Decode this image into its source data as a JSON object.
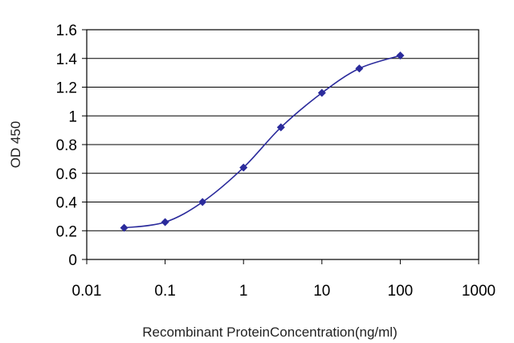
{
  "chart_data": {
    "type": "line",
    "title": "",
    "xlabel": "Recombinant ProteinConcentration(ng/ml)",
    "ylabel": "OD 450",
    "x_scale": "log",
    "xlim": [
      0.01,
      1000
    ],
    "ylim": [
      0,
      1.6
    ],
    "x_ticks": [
      0.01,
      0.1,
      1,
      10,
      100,
      1000
    ],
    "x_tick_labels": [
      "0.01",
      "0.1",
      "1",
      "10",
      "100",
      "1000"
    ],
    "y_ticks": [
      0,
      0.2,
      0.4,
      0.6,
      0.8,
      1,
      1.2,
      1.4,
      1.6
    ],
    "y_tick_labels": [
      "0",
      "0.2",
      "0.4",
      "0.6",
      "0.8",
      "1",
      "1.2",
      "1.4",
      "1.6"
    ],
    "grid": "horizontal",
    "legend": "none",
    "series_color": "#2b2b9c",
    "marker": "diamond",
    "series": [
      {
        "x": [
          0.03,
          0.1,
          0.3,
          1,
          3,
          10,
          30,
          100
        ],
        "y": [
          0.22,
          0.26,
          0.4,
          0.64,
          0.92,
          1.16,
          1.33,
          1.42
        ]
      }
    ]
  }
}
